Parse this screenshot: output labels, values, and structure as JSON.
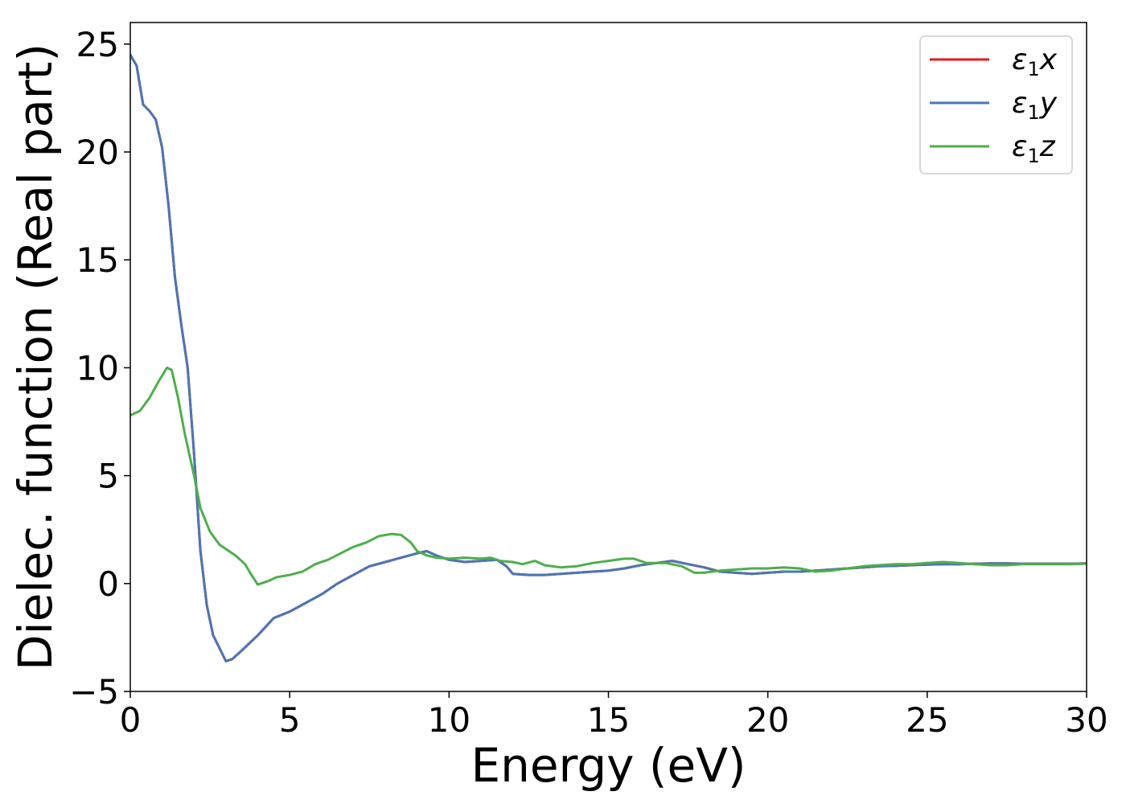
{
  "chart_data": {
    "type": "line",
    "title": "",
    "xlabel": "Energy (eV)",
    "ylabel": "Dielec. function (Real part)",
    "xlim": [
      0,
      30
    ],
    "ylim": [
      -5,
      26
    ],
    "xticks": [
      0,
      5,
      10,
      15,
      20,
      25,
      30
    ],
    "xtick_labels": [
      "0",
      "5",
      "10",
      "15",
      "20",
      "25",
      "30"
    ],
    "yticks": [
      -5,
      0,
      5,
      10,
      15,
      20,
      25
    ],
    "ytick_labels": [
      "−5",
      "0",
      "5",
      "10",
      "15",
      "20",
      "25"
    ],
    "grid": false,
    "legend_position": "top-right",
    "series": [
      {
        "name": "x",
        "color": "#e41a1c",
        "points": [
          [
            0,
            24.5
          ],
          [
            0.2,
            24.0
          ],
          [
            0.4,
            22.2
          ],
          [
            0.6,
            21.9
          ],
          [
            0.8,
            21.5
          ],
          [
            1.0,
            20.2
          ],
          [
            1.2,
            17.5
          ],
          [
            1.4,
            14.2
          ],
          [
            1.6,
            12.0
          ],
          [
            1.8,
            10.0
          ],
          [
            2.0,
            6.0
          ],
          [
            2.2,
            1.5
          ],
          [
            2.4,
            -1.0
          ],
          [
            2.6,
            -2.4
          ],
          [
            2.8,
            -3.0
          ],
          [
            3.0,
            -3.6
          ],
          [
            3.2,
            -3.5
          ],
          [
            3.5,
            -3.1
          ],
          [
            4.0,
            -2.4
          ],
          [
            4.5,
            -1.6
          ],
          [
            5.0,
            -1.3
          ],
          [
            5.5,
            -0.9
          ],
          [
            6.0,
            -0.5
          ],
          [
            6.5,
            0.0
          ],
          [
            7.0,
            0.4
          ],
          [
            7.5,
            0.8
          ],
          [
            8.0,
            1.0
          ],
          [
            8.5,
            1.2
          ],
          [
            9.0,
            1.4
          ],
          [
            9.3,
            1.5
          ],
          [
            9.6,
            1.3
          ],
          [
            10.0,
            1.1
          ],
          [
            10.5,
            1.0
          ],
          [
            11.0,
            1.05
          ],
          [
            11.5,
            1.1
          ],
          [
            11.8,
            0.8
          ],
          [
            12.0,
            0.45
          ],
          [
            12.5,
            0.4
          ],
          [
            13.0,
            0.4
          ],
          [
            13.5,
            0.45
          ],
          [
            14.0,
            0.5
          ],
          [
            14.5,
            0.55
          ],
          [
            15.0,
            0.6
          ],
          [
            15.5,
            0.7
          ],
          [
            16.0,
            0.85
          ],
          [
            16.5,
            0.95
          ],
          [
            17.0,
            1.05
          ],
          [
            17.5,
            0.9
          ],
          [
            18.0,
            0.75
          ],
          [
            18.5,
            0.55
          ],
          [
            19.0,
            0.5
          ],
          [
            19.5,
            0.45
          ],
          [
            20.0,
            0.5
          ],
          [
            20.5,
            0.55
          ],
          [
            21.0,
            0.55
          ],
          [
            21.5,
            0.6
          ],
          [
            22.0,
            0.65
          ],
          [
            22.5,
            0.7
          ],
          [
            23.0,
            0.75
          ],
          [
            23.5,
            0.8
          ],
          [
            24.0,
            0.82
          ],
          [
            24.5,
            0.85
          ],
          [
            25.0,
            0.88
          ],
          [
            25.5,
            0.9
          ],
          [
            26.0,
            0.9
          ],
          [
            26.5,
            0.92
          ],
          [
            27.0,
            0.93
          ],
          [
            27.5,
            0.93
          ],
          [
            28.0,
            0.92
          ],
          [
            28.5,
            0.92
          ],
          [
            29.0,
            0.92
          ],
          [
            29.5,
            0.92
          ],
          [
            30.0,
            0.93
          ]
        ]
      },
      {
        "name": "y",
        "color": "#4a77b4",
        "points": [
          [
            0,
            24.5
          ],
          [
            0.2,
            24.0
          ],
          [
            0.4,
            22.2
          ],
          [
            0.6,
            21.9
          ],
          [
            0.8,
            21.5
          ],
          [
            1.0,
            20.2
          ],
          [
            1.2,
            17.5
          ],
          [
            1.4,
            14.2
          ],
          [
            1.6,
            12.0
          ],
          [
            1.8,
            10.0
          ],
          [
            2.0,
            6.0
          ],
          [
            2.2,
            1.5
          ],
          [
            2.4,
            -1.0
          ],
          [
            2.6,
            -2.4
          ],
          [
            2.8,
            -3.0
          ],
          [
            3.0,
            -3.6
          ],
          [
            3.2,
            -3.5
          ],
          [
            3.5,
            -3.1
          ],
          [
            4.0,
            -2.4
          ],
          [
            4.5,
            -1.6
          ],
          [
            5.0,
            -1.3
          ],
          [
            5.5,
            -0.9
          ],
          [
            6.0,
            -0.5
          ],
          [
            6.5,
            0.0
          ],
          [
            7.0,
            0.4
          ],
          [
            7.5,
            0.8
          ],
          [
            8.0,
            1.0
          ],
          [
            8.5,
            1.2
          ],
          [
            9.0,
            1.4
          ],
          [
            9.3,
            1.5
          ],
          [
            9.6,
            1.3
          ],
          [
            10.0,
            1.1
          ],
          [
            10.5,
            1.0
          ],
          [
            11.0,
            1.05
          ],
          [
            11.5,
            1.1
          ],
          [
            11.8,
            0.8
          ],
          [
            12.0,
            0.45
          ],
          [
            12.5,
            0.4
          ],
          [
            13.0,
            0.4
          ],
          [
            13.5,
            0.45
          ],
          [
            14.0,
            0.5
          ],
          [
            14.5,
            0.55
          ],
          [
            15.0,
            0.6
          ],
          [
            15.5,
            0.7
          ],
          [
            16.0,
            0.85
          ],
          [
            16.5,
            0.95
          ],
          [
            17.0,
            1.05
          ],
          [
            17.5,
            0.9
          ],
          [
            18.0,
            0.75
          ],
          [
            18.5,
            0.55
          ],
          [
            19.0,
            0.5
          ],
          [
            19.5,
            0.45
          ],
          [
            20.0,
            0.5
          ],
          [
            20.5,
            0.55
          ],
          [
            21.0,
            0.55
          ],
          [
            21.5,
            0.6
          ],
          [
            22.0,
            0.65
          ],
          [
            22.5,
            0.7
          ],
          [
            23.0,
            0.75
          ],
          [
            23.5,
            0.8
          ],
          [
            24.0,
            0.82
          ],
          [
            24.5,
            0.85
          ],
          [
            25.0,
            0.88
          ],
          [
            25.5,
            0.9
          ],
          [
            26.0,
            0.9
          ],
          [
            26.5,
            0.92
          ],
          [
            27.0,
            0.93
          ],
          [
            27.5,
            0.93
          ],
          [
            28.0,
            0.92
          ],
          [
            28.5,
            0.92
          ],
          [
            29.0,
            0.92
          ],
          [
            29.5,
            0.92
          ],
          [
            30.0,
            0.93
          ]
        ]
      },
      {
        "name": "z",
        "color": "#4daf4a",
        "points": [
          [
            0,
            7.8
          ],
          [
            0.3,
            8.0
          ],
          [
            0.6,
            8.6
          ],
          [
            0.9,
            9.4
          ],
          [
            1.15,
            10.0
          ],
          [
            1.3,
            9.9
          ],
          [
            1.5,
            8.6
          ],
          [
            1.7,
            7.0
          ],
          [
            2.0,
            5.0
          ],
          [
            2.2,
            3.5
          ],
          [
            2.5,
            2.4
          ],
          [
            2.8,
            1.8
          ],
          [
            3.0,
            1.6
          ],
          [
            3.3,
            1.3
          ],
          [
            3.6,
            0.9
          ],
          [
            3.8,
            0.4
          ],
          [
            4.0,
            -0.05
          ],
          [
            4.3,
            0.1
          ],
          [
            4.6,
            0.3
          ],
          [
            5.0,
            0.4
          ],
          [
            5.4,
            0.55
          ],
          [
            5.8,
            0.9
          ],
          [
            6.2,
            1.1
          ],
          [
            6.6,
            1.4
          ],
          [
            7.0,
            1.7
          ],
          [
            7.4,
            1.9
          ],
          [
            7.8,
            2.2
          ],
          [
            8.2,
            2.3
          ],
          [
            8.5,
            2.25
          ],
          [
            8.8,
            1.9
          ],
          [
            9.0,
            1.5
          ],
          [
            9.3,
            1.3
          ],
          [
            9.6,
            1.2
          ],
          [
            10.0,
            1.15
          ],
          [
            10.5,
            1.2
          ],
          [
            11.0,
            1.15
          ],
          [
            11.3,
            1.2
          ],
          [
            11.6,
            1.05
          ],
          [
            12.0,
            1.0
          ],
          [
            12.3,
            0.9
          ],
          [
            12.7,
            1.05
          ],
          [
            13.0,
            0.85
          ],
          [
            13.5,
            0.75
          ],
          [
            14.0,
            0.8
          ],
          [
            14.5,
            0.95
          ],
          [
            15.0,
            1.05
          ],
          [
            15.5,
            1.15
          ],
          [
            15.8,
            1.15
          ],
          [
            16.2,
            0.95
          ],
          [
            16.8,
            0.95
          ],
          [
            17.3,
            0.8
          ],
          [
            17.7,
            0.5
          ],
          [
            18.0,
            0.5
          ],
          [
            18.5,
            0.6
          ],
          [
            19.0,
            0.65
          ],
          [
            19.5,
            0.7
          ],
          [
            20.0,
            0.7
          ],
          [
            20.5,
            0.75
          ],
          [
            21.0,
            0.7
          ],
          [
            21.5,
            0.55
          ],
          [
            22.0,
            0.6
          ],
          [
            22.5,
            0.7
          ],
          [
            23.0,
            0.8
          ],
          [
            23.5,
            0.85
          ],
          [
            24.0,
            0.9
          ],
          [
            24.5,
            0.9
          ],
          [
            25.0,
            0.95
          ],
          [
            25.5,
            1.0
          ],
          [
            26.0,
            0.95
          ],
          [
            26.5,
            0.9
          ],
          [
            27.0,
            0.85
          ],
          [
            27.5,
            0.85
          ],
          [
            28.0,
            0.9
          ],
          [
            28.5,
            0.9
          ],
          [
            29.0,
            0.9
          ],
          [
            29.5,
            0.9
          ],
          [
            30.0,
            0.92
          ]
        ]
      }
    ]
  }
}
